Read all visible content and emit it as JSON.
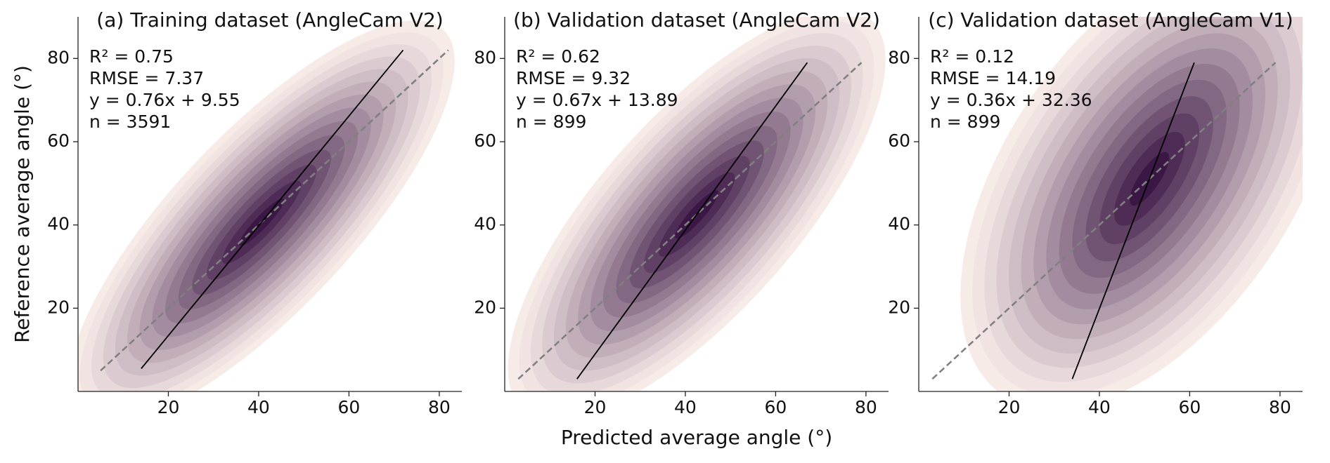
{
  "chart_data": [
    {
      "type": "kde",
      "title": "(a) Training dataset (AngleCam V2)",
      "ylabel": "Reference average angle (°)",
      "annotations": [
        "R² = 0.75",
        "RMSE = 7.37",
        "y = 0.76x + 9.55",
        "n = 3591"
      ],
      "series": [
        {
          "style": "dashed",
          "color": "#808080",
          "x": [
            5,
            82
          ],
          "y": [
            5,
            82
          ]
        },
        {
          "style": "solid",
          "color": "#000000",
          "x": [
            14,
            72
          ],
          "y": [
            5.5,
            82
          ]
        }
      ],
      "density_colors": [
        "#f7ebe8",
        "#3b1745"
      ],
      "xlim": [
        0,
        85
      ],
      "ylim": [
        0,
        90
      ],
      "xticks": [
        20,
        40,
        60,
        80
      ],
      "yticks": [
        20,
        40,
        60,
        80
      ]
    },
    {
      "type": "kde",
      "title": "(b) Validation dataset (AngleCam V2)",
      "xlabel": "Predicted average angle (°)",
      "annotations": [
        "R² = 0.62",
        "RMSE = 9.32",
        "y = 0.67x + 13.89",
        "n = 899"
      ],
      "series": [
        {
          "style": "dashed",
          "color": "#808080",
          "x": [
            3,
            79
          ],
          "y": [
            3,
            79
          ]
        },
        {
          "style": "solid",
          "color": "#000000",
          "x": [
            16,
            67
          ],
          "y": [
            3,
            79
          ]
        }
      ],
      "density_colors": [
        "#f7ebe8",
        "#3b1745"
      ],
      "xlim": [
        0,
        85
      ],
      "ylim": [
        0,
        90
      ],
      "xticks": [
        20,
        40,
        60,
        80
      ],
      "yticks": [
        20,
        40,
        60,
        80
      ]
    },
    {
      "type": "kde",
      "title": "(c) Validation dataset (AngleCam V1)",
      "annotations": [
        "R² = 0.12",
        "RMSE = 14.19",
        "y = 0.36x + 32.36",
        "n = 899"
      ],
      "series": [
        {
          "style": "dashed",
          "color": "#808080",
          "x": [
            3,
            79
          ],
          "y": [
            3,
            79
          ]
        },
        {
          "style": "solid",
          "color": "#000000",
          "x": [
            34,
            61
          ],
          "y": [
            3,
            79
          ]
        }
      ],
      "density_colors": [
        "#f7ebe8",
        "#3b1745"
      ],
      "xlim": [
        0,
        85
      ],
      "ylim": [
        0,
        90
      ],
      "xticks": [
        20,
        40,
        60,
        80
      ],
      "yticks": [
        20,
        40,
        60,
        80
      ]
    }
  ]
}
